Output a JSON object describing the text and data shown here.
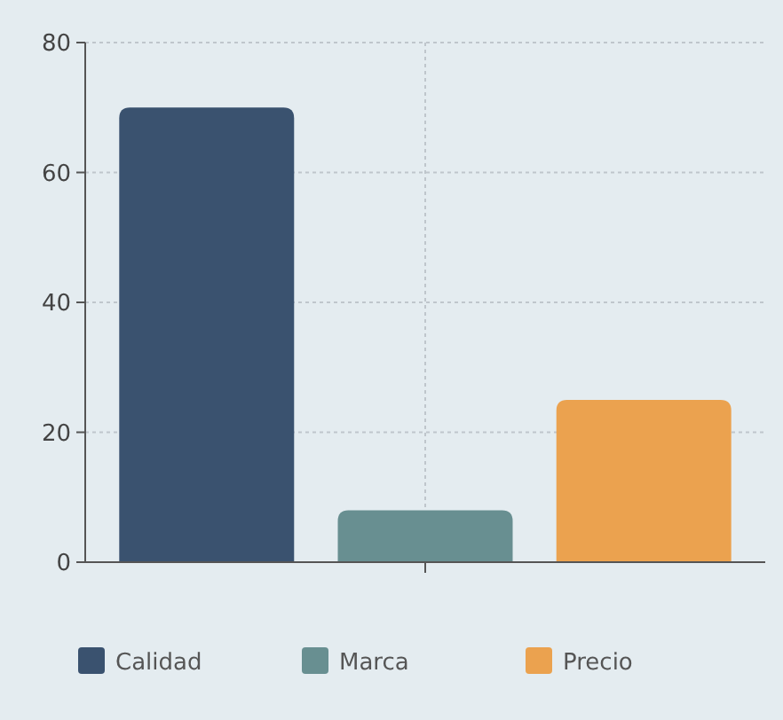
{
  "chart_data": {
    "type": "bar",
    "categories": [
      null
    ],
    "series": [
      {
        "name": "Calidad",
        "color": "#3a526f",
        "values": [
          70
        ]
      },
      {
        "name": "Marca",
        "color": "#688f91",
        "values": [
          8
        ]
      },
      {
        "name": "Precio",
        "color": "#eba24f",
        "values": [
          25
        ]
      }
    ],
    "ylim": [
      0,
      80
    ],
    "yticks": [
      0,
      20,
      40,
      60,
      80
    ],
    "grid": true,
    "legend": "bottom"
  }
}
